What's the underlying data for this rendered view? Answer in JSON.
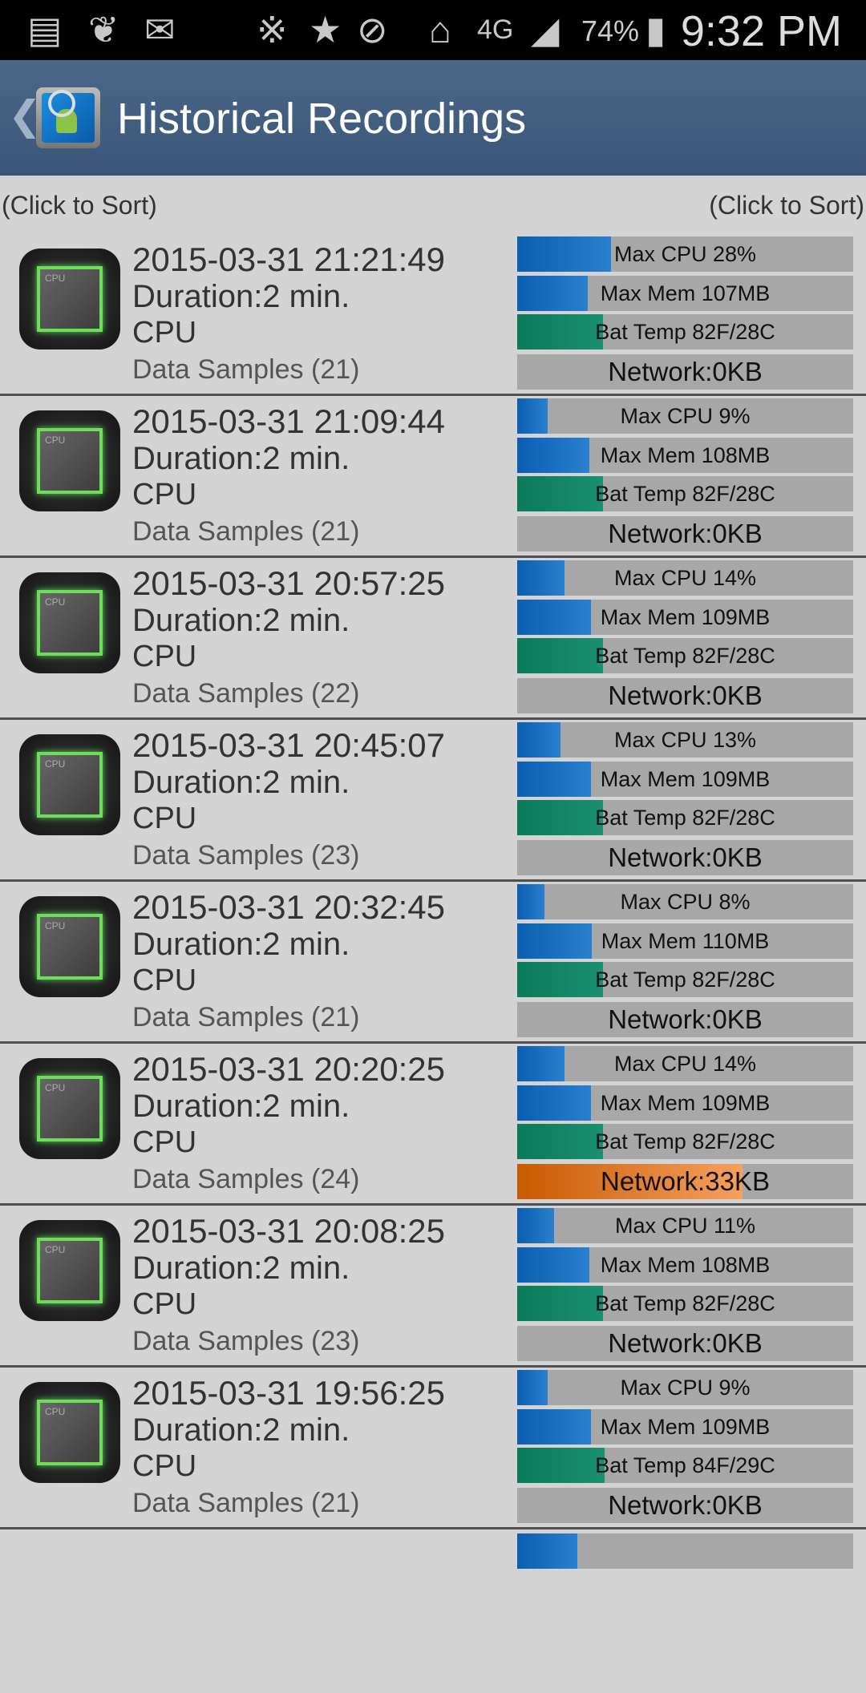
{
  "status_bar": {
    "icons": [
      "chat-icon",
      "twitter-icon",
      "mail-icon",
      "bluetooth-icon",
      "star-icon",
      "vibrate-mute-icon",
      "wifi-icon",
      "4g-lte-icon",
      "signal-icon",
      "battery-charging-icon"
    ],
    "battery": "74%",
    "time": "9:32 PM"
  },
  "app_bar": {
    "title": "Historical Recordings"
  },
  "sort": {
    "left": "(Click to Sort)",
    "right": "(Click to Sort)"
  },
  "colors": {
    "cpu": "#0b5eb0",
    "mem": "#0b5eb0",
    "temp": "#0a7a5a",
    "network": "#c85a00",
    "bar_bg": "#a7a7a7"
  },
  "recordings": [
    {
      "date": "2015-03-31 21:21:49",
      "duration": "Duration:2 min.",
      "type": "CPU",
      "samples": "Data Samples (21)",
      "cpu": "Max CPU 28%",
      "cpu_fill": 0.28,
      "mem": "Max Mem 107MB",
      "mem_fill": 0.21,
      "temp": "Bat Temp 82F/28C",
      "temp_fill": 0.255,
      "net": "Network:0KB",
      "net_fill": 0
    },
    {
      "date": "2015-03-31 21:09:44",
      "duration": "Duration:2 min.",
      "type": "CPU",
      "samples": "Data Samples (21)",
      "cpu": "Max CPU 9%",
      "cpu_fill": 0.09,
      "mem": "Max Mem 108MB",
      "mem_fill": 0.215,
      "temp": "Bat Temp 82F/28C",
      "temp_fill": 0.255,
      "net": "Network:0KB",
      "net_fill": 0
    },
    {
      "date": "2015-03-31 20:57:25",
      "duration": "Duration:2 min.",
      "type": "CPU",
      "samples": "Data Samples (22)",
      "cpu": "Max CPU 14%",
      "cpu_fill": 0.14,
      "mem": "Max Mem 109MB",
      "mem_fill": 0.22,
      "temp": "Bat Temp 82F/28C",
      "temp_fill": 0.255,
      "net": "Network:0KB",
      "net_fill": 0
    },
    {
      "date": "2015-03-31 20:45:07",
      "duration": "Duration:2 min.",
      "type": "CPU",
      "samples": "Data Samples (23)",
      "cpu": "Max CPU 13%",
      "cpu_fill": 0.13,
      "mem": "Max Mem 109MB",
      "mem_fill": 0.22,
      "temp": "Bat Temp 82F/28C",
      "temp_fill": 0.255,
      "net": "Network:0KB",
      "net_fill": 0
    },
    {
      "date": "2015-03-31 20:32:45",
      "duration": "Duration:2 min.",
      "type": "CPU",
      "samples": "Data Samples (21)",
      "cpu": "Max CPU 8%",
      "cpu_fill": 0.08,
      "mem": "Max Mem 110MB",
      "mem_fill": 0.222,
      "temp": "Bat Temp 82F/28C",
      "temp_fill": 0.255,
      "net": "Network:0KB",
      "net_fill": 0
    },
    {
      "date": "2015-03-31 20:20:25",
      "duration": "Duration:2 min.",
      "type": "CPU",
      "samples": "Data Samples (24)",
      "cpu": "Max CPU 14%",
      "cpu_fill": 0.14,
      "mem": "Max Mem 109MB",
      "mem_fill": 0.22,
      "temp": "Bat Temp 82F/28C",
      "temp_fill": 0.255,
      "net": "Network:33KB",
      "net_fill": 0.67
    },
    {
      "date": "2015-03-31 20:08:25",
      "duration": "Duration:2 min.",
      "type": "CPU",
      "samples": "Data Samples (23)",
      "cpu": "Max CPU 11%",
      "cpu_fill": 0.11,
      "mem": "Max Mem 108MB",
      "mem_fill": 0.215,
      "temp": "Bat Temp 82F/28C",
      "temp_fill": 0.255,
      "net": "Network:0KB",
      "net_fill": 0
    },
    {
      "date": "2015-03-31 19:56:25",
      "duration": "Duration:2 min.",
      "type": "CPU",
      "samples": "Data Samples (21)",
      "cpu": "Max CPU 9%",
      "cpu_fill": 0.09,
      "mem": "Max Mem 109MB",
      "mem_fill": 0.22,
      "temp": "Bat Temp 84F/29C",
      "temp_fill": 0.26,
      "net": "Network:0KB",
      "net_fill": 0
    }
  ]
}
